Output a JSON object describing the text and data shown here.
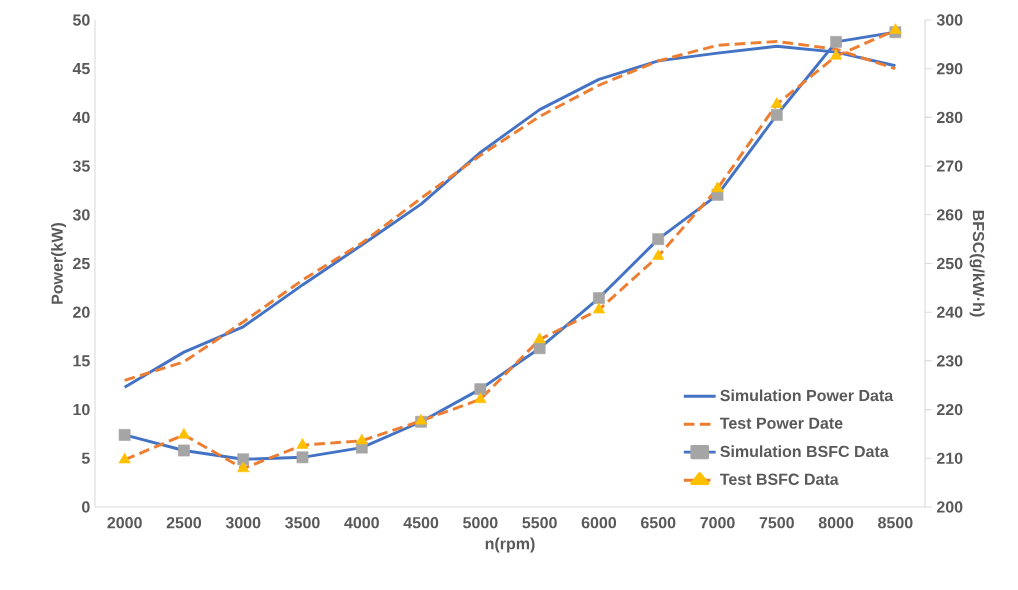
{
  "chart_data": {
    "type": "line",
    "xlabel": "n(rpm)",
    "ylabel": "Power(kW)",
    "y2label": "BFSC(g/kW·h)",
    "categories": [
      "2000",
      "2500",
      "3000",
      "3500",
      "4000",
      "4500",
      "5000",
      "5500",
      "6000",
      "6500",
      "7000",
      "7500",
      "8000",
      "8500"
    ],
    "ylim": [
      0,
      50
    ],
    "yticks": [
      0,
      5,
      10,
      15,
      20,
      25,
      30,
      35,
      40,
      45,
      50
    ],
    "y2lim": [
      200,
      300
    ],
    "y2ticks": [
      200,
      210,
      220,
      230,
      240,
      250,
      260,
      270,
      280,
      290,
      300
    ],
    "grid": false,
    "legend": "bottom right",
    "series": [
      {
        "name": "Simulation Power Data",
        "color": "#4472c4",
        "line_style": "solid",
        "marker": "none",
        "values": [
          12.3,
          15.9,
          18.5,
          22.8,
          26.9,
          31.1,
          36.4,
          40.8,
          43.9,
          45.8,
          46.6,
          47.3,
          46.7,
          45.3
        ]
      },
      {
        "name": "Test Power Date",
        "color": "#ed7d31",
        "line_style": "dashed",
        "marker": "none",
        "values": [
          13.0,
          14.9,
          19.0,
          23.3,
          27.1,
          31.7,
          36.1,
          40.1,
          43.3,
          45.8,
          47.4,
          47.8,
          47.0,
          45.0
        ]
      },
      {
        "name": "Simulation BSFC Data",
        "color": "#4472c4",
        "line_style": "solid",
        "marker": "square",
        "axis": "y2",
        "colors": [
          "#a5a5a5",
          "#a5a5a5",
          "#a5a5a5",
          "#a5a5a5",
          "#a5a5a5",
          "#a5a5a5",
          "#a5a5a5",
          "#a5a5a5",
          "#a5a5a5",
          "#a5a5a5",
          "#a5a5a5",
          "#a5a5a5",
          "#a5a5a5",
          "#a5a5a5"
        ],
        "values": [
          214.8,
          211.6,
          209.8,
          210.2,
          212.2,
          217.5,
          224.2,
          232.6,
          242.9,
          255.0,
          264.1,
          280.5,
          295.5,
          297.5
        ]
      },
      {
        "name": "Test BSFC Data",
        "color": "#ed7d31",
        "line_style": "dashed",
        "marker": "triangle",
        "axis": "y2",
        "colors": [
          "#ffc000",
          "#ffc000",
          "#ffc000",
          "#ffc000",
          "#ffc000",
          "#ffc000",
          "#ffc000",
          "#ffc000",
          "#ffc000",
          "#ffc000",
          "#ffc000",
          "#ffc000",
          "#ffc000",
          "#ffc000"
        ],
        "values": [
          209.7,
          214.8,
          207.9,
          212.7,
          213.6,
          217.7,
          222.1,
          234.4,
          240.5,
          251.5,
          265.4,
          282.7,
          292.6,
          297.9
        ]
      }
    ]
  }
}
